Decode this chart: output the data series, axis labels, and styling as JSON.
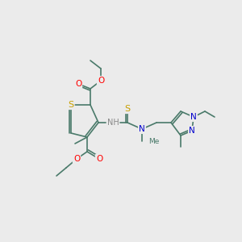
{
  "background_color": "#ebebeb",
  "bond_color": "#4a7a6a",
  "hetero_colors": {
    "O": "#ff0000",
    "S": "#c8a000",
    "N": "#0000cc",
    "H": "#888888"
  },
  "line_width": 1.2,
  "font_size": 7.5
}
